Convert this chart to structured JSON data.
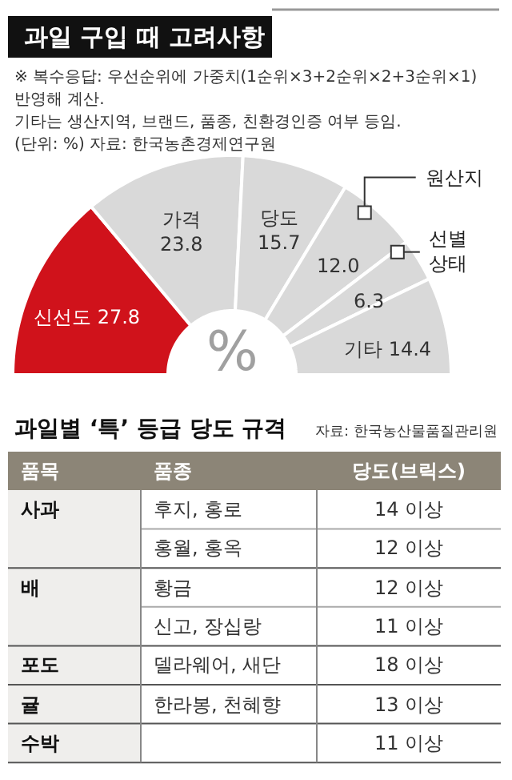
{
  "chart_data": [
    {
      "type": "donut",
      "title": "과일 구입 때 고려사항",
      "subtitle": "※ 복수응답: 우선순위에 가중치(1순위×3+2순위×2+3순위×1) 반영해 계산.\n기타는 생산지역, 브랜드, 품종, 친환경인증 여부 등임.",
      "annotations": [
        "(단위: %) 자료: 한국농촌경제연구원",
        "%"
      ],
      "categories": [
        "신선도",
        "가격",
        "당도",
        "원산지",
        "선별 상태",
        "기타"
      ],
      "values": [
        27.8,
        23.8,
        15.7,
        12.0,
        6.3,
        14.4
      ],
      "colors": [
        "#d0121b",
        "#d9d9d9",
        "#d9d9d9",
        "#d9d9d9",
        "#d9d9d9",
        "#d9d9d9"
      ],
      "value_labels": [
        "27.8",
        "23.8",
        "15.7",
        "12.0",
        "6.3",
        "14.4"
      ]
    },
    {
      "type": "other",
      "title": "과일별 ‘특’ 등급 당도 규격",
      "annotations": [
        "자료: 한국농산물품질관리원"
      ],
      "categories": [
        "품목",
        "품종",
        "당도(브릭스)"
      ],
      "cell_labels": [
        [
          "사과",
          "후지, 홍로",
          "14 이상"
        ],
        [
          null,
          "홍월, 홍옥",
          "12 이상"
        ],
        [
          "배",
          "황금",
          "12 이상"
        ],
        [
          null,
          "신고, 장십랑",
          "11 이상"
        ],
        [
          "포도",
          "델라웨어, 새단",
          "18 이상"
        ],
        [
          "귤",
          "한라봉, 천혜향",
          "13 이상"
        ],
        [
          "수박",
          null,
          "11 이상"
        ]
      ]
    }
  ]
}
